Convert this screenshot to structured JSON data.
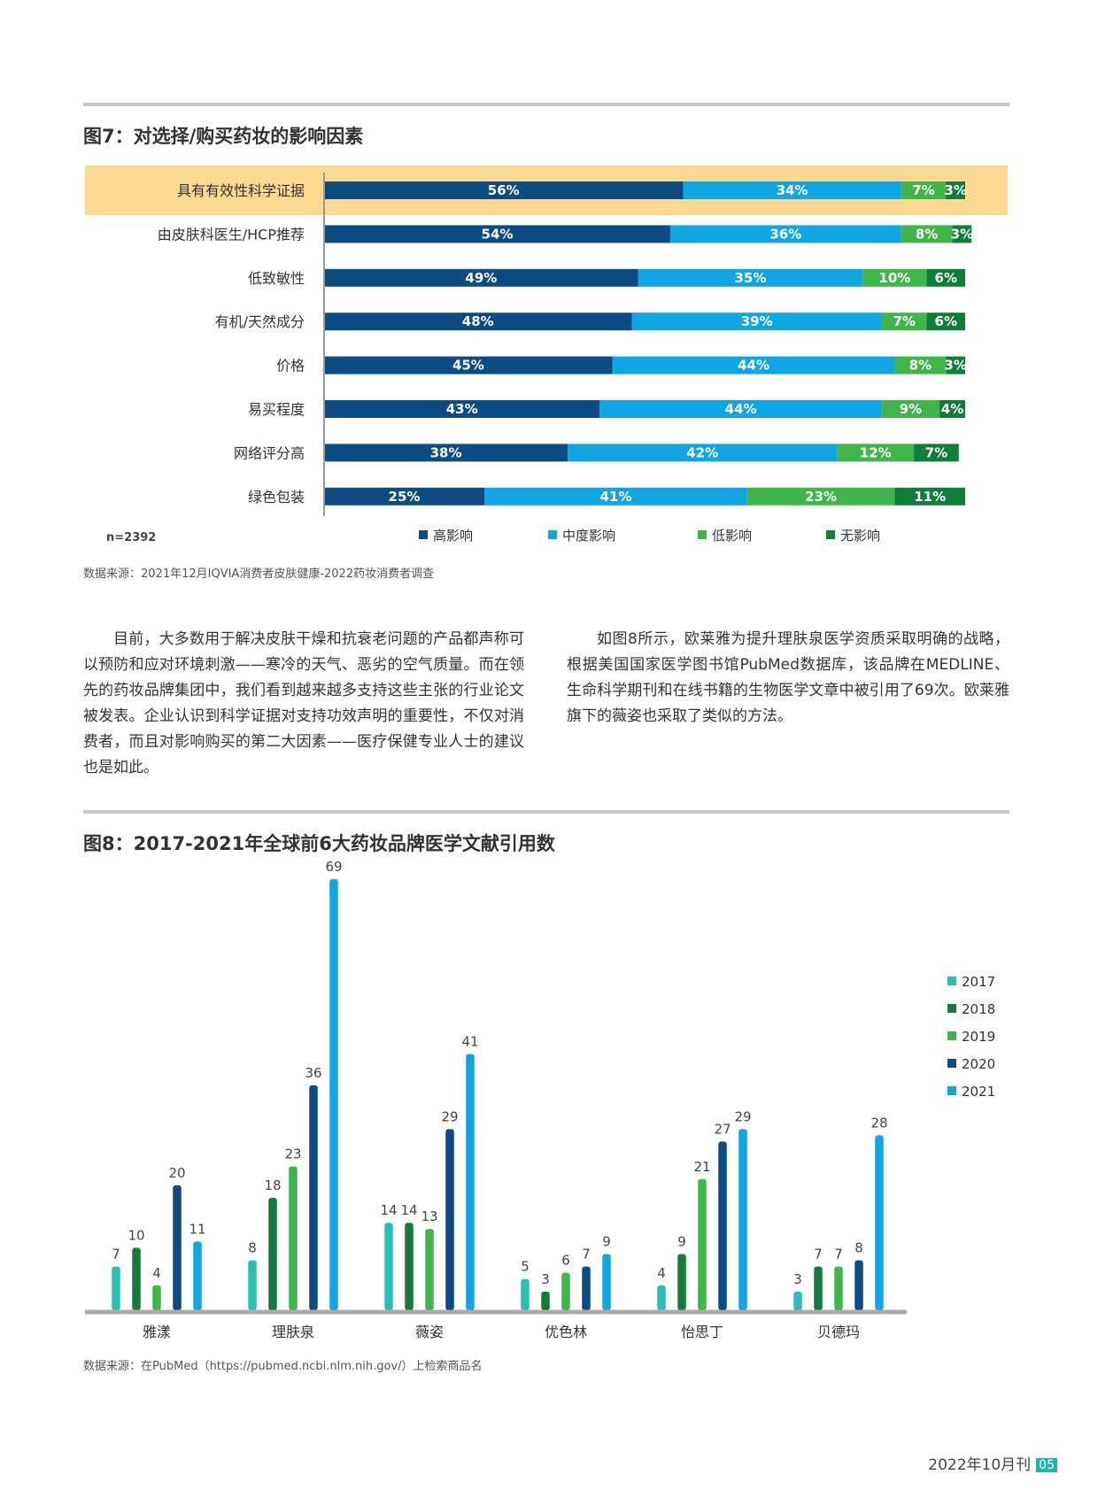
{
  "colors": {
    "highlight": "#fcd991",
    "high": "#0c4c84",
    "medium": "#10a5e3",
    "low": "#3fb54a",
    "none": "#0f7e3b",
    "y2017": "#27c0b3",
    "y2018": "#167a3d",
    "y2019": "#3fb54a",
    "y2020": "#0c4c84",
    "y2021": "#10a5e3"
  },
  "fig7": {
    "title": "图7：对选择/购买药妆的影响因素",
    "n_label": "n=2392",
    "source": "数据来源：2021年12月IQVIA消费者皮肤健康-2022药妆消费者调查"
  },
  "fig8": {
    "title": "图8：2017-2021年全球前6大药妆品牌医学文献引用数",
    "source": "数据来源：在PubMed（https://pubmed.ncbi.nlm.nih.gov/）上检索商品名"
  },
  "body_text": {
    "left": "目前，大多数用于解决皮肤干燥和抗衰老问题的产品都声称可以预防和应对环境刺激——寒冷的天气、恶劣的空气质量。而在领先的药妆品牌集团中，我们看到越来越多支持这些主张的行业论文被发表。企业认识到科学证据对支持功效声明的重要性，不仅对消费者，而且对影响购买的第二大因素——医疗保健专业人士的建议也是如此。",
    "right": "如图8所示，欧莱雅为提升理肤泉医学资质采取明确的战略，根据美国国家医学图书馆PubMed数据库，该品牌在MEDLINE、生命科学期刊和在线书籍的生物医学文章中被引用了69次。欧莱雅旗下的薇姿也采取了类似的方法。"
  },
  "footer": {
    "issue": "2022年10月刊",
    "page": "05"
  },
  "chart_data": [
    {
      "type": "bar",
      "orientation": "horizontal",
      "stacked": true,
      "categories": [
        "具有有效性科学证据",
        "由皮肤科医生/HCP推荐",
        "低致敏性",
        "有机/天然成分",
        "价格",
        "易买程度",
        "网络评分高",
        "绿色包装"
      ],
      "highlighted_category": "具有有效性科学证据",
      "series": [
        {
          "name": "高影响",
          "values": [
            56,
            54,
            49,
            48,
            45,
            43,
            38,
            25
          ],
          "color": "#0c4c84"
        },
        {
          "name": "中度影响",
          "values": [
            34,
            36,
            35,
            39,
            44,
            44,
            42,
            41
          ],
          "color": "#10a5e3"
        },
        {
          "name": "低影响",
          "values": [
            7,
            8,
            10,
            7,
            8,
            9,
            12,
            23
          ],
          "color": "#3fb54a"
        },
        {
          "name": "无影响",
          "values": [
            3,
            3,
            6,
            6,
            3,
            4,
            7,
            11
          ],
          "color": "#0f7e3b"
        }
      ],
      "value_format": "percent",
      "legend_position": "bottom"
    },
    {
      "type": "bar",
      "orientation": "vertical",
      "categories": [
        "雅漾",
        "理肤泉",
        "薇姿",
        "优色林",
        "怡思丁",
        "贝德玛"
      ],
      "series": [
        {
          "name": "2017",
          "values": [
            7,
            8,
            14,
            5,
            4,
            3
          ],
          "color": "#27c0b3"
        },
        {
          "name": "2018",
          "values": [
            10,
            18,
            14,
            3,
            9,
            7
          ],
          "color": "#167a3d"
        },
        {
          "name": "2019",
          "values": [
            4,
            23,
            13,
            6,
            21,
            7
          ],
          "color": "#3fb54a"
        },
        {
          "name": "2020",
          "values": [
            20,
            36,
            29,
            7,
            27,
            8
          ],
          "color": "#0c4c84"
        },
        {
          "name": "2021",
          "values": [
            11,
            69,
            41,
            9,
            29,
            28
          ],
          "color": "#10a5e3"
        }
      ],
      "ylim": [
        0,
        69
      ],
      "grid": false,
      "legend_position": "right"
    }
  ]
}
